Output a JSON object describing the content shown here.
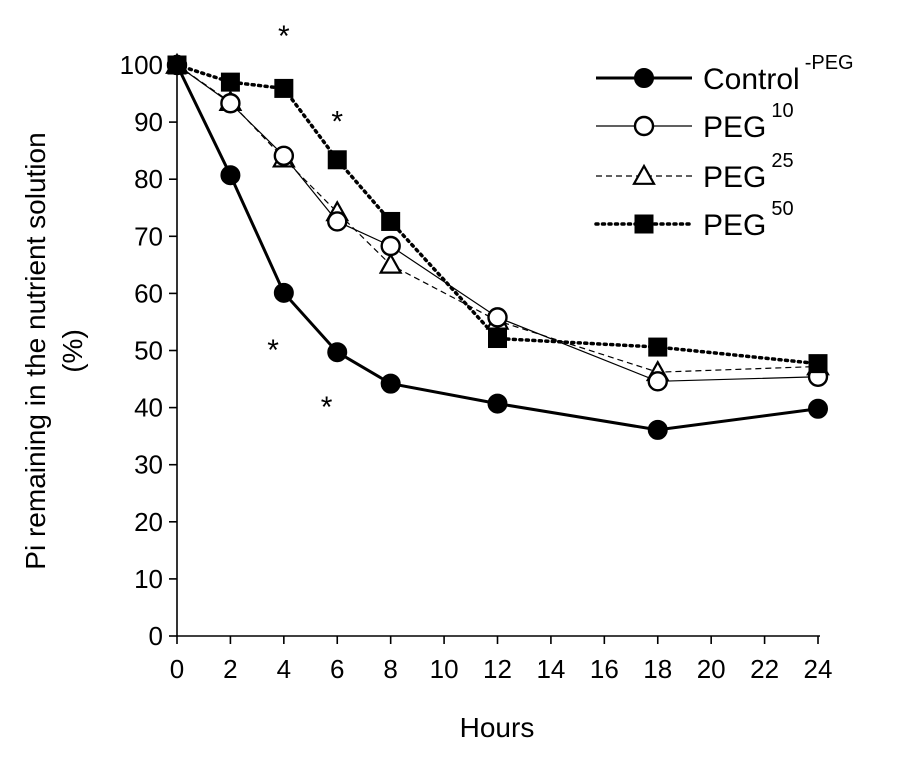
{
  "chart_data": {
    "type": "line",
    "title": "",
    "xlabel": "Hours",
    "ylabel_line1": "Pi remaining in the nutrient solution",
    "ylabel_line2": "(%)",
    "xlim": [
      0,
      24
    ],
    "ylim": [
      0,
      100
    ],
    "x_ticks": [
      0,
      2,
      4,
      6,
      8,
      10,
      12,
      14,
      16,
      18,
      20,
      22,
      24
    ],
    "y_ticks": [
      0,
      10,
      20,
      30,
      40,
      50,
      60,
      70,
      80,
      90,
      100
    ],
    "grid": false,
    "legend_position": "top-right",
    "x": [
      0,
      2,
      4,
      6,
      8,
      12,
      18,
      24
    ],
    "series": [
      {
        "name": "Control",
        "superscript": "-PEG",
        "marker": "filled-circle",
        "line": "solid-thick",
        "color": "#000000",
        "values": [
          100,
          80.7,
          60.1,
          49.7,
          44.2,
          40.7,
          36.1,
          39.8
        ]
      },
      {
        "name": "PEG",
        "superscript": "10",
        "marker": "open-circle",
        "line": "solid-thin",
        "color": "#000000",
        "values": [
          100,
          93.3,
          84.1,
          72.6,
          68.3,
          55.8,
          44.6,
          45.4
        ]
      },
      {
        "name": "PEG",
        "superscript": "25",
        "marker": "open-triangle",
        "line": "dashed",
        "color": "#000000",
        "values": [
          100,
          93.5,
          83.6,
          74.2,
          65.0,
          55.2,
          46.2,
          47.2
        ]
      },
      {
        "name": "PEG",
        "superscript": "50",
        "marker": "filled-square",
        "line": "dotted",
        "color": "#000000",
        "values": [
          100,
          97.0,
          95.9,
          83.4,
          72.6,
          52.1,
          50.6,
          47.7
        ]
      }
    ],
    "annotations": [
      {
        "text": "*",
        "x": 4,
        "y": 106.5
      },
      {
        "text": "*",
        "x": 6,
        "y": 91.5
      },
      {
        "text": "*",
        "x": 3.6,
        "y": 51.5
      },
      {
        "text": "*",
        "x": 5.6,
        "y": 41.5
      }
    ]
  }
}
